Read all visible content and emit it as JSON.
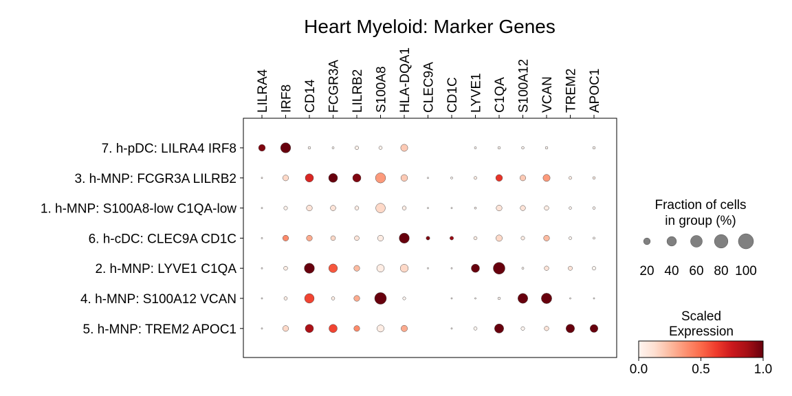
{
  "chart_data": {
    "type": "dotplot",
    "title": "Heart Myeloid: Marker Genes",
    "genes": [
      "LILRA4",
      "IRF8",
      "CD14",
      "FCGR3A",
      "LILRB2",
      "S100A8",
      "HLA-DQA1",
      "CLEC9A",
      "CD1C",
      "LYVE1",
      "C1QA",
      "S100A12",
      "VCAN",
      "TREM2",
      "APOC1"
    ],
    "groups": [
      "7. h-pDC: LILRA4 IRF8",
      "3. h-MNP: FCGR3A LILRB2",
      "1. h-MNP: S100A8-low C1QA-low",
      "6. h-cDC: CLEC9A CD1C",
      "2. h-MNP: LYVE1 C1QA",
      "4. h-MNP: S100A12 VCAN",
      "5. h-MNP: TREM2 APOC1"
    ],
    "fraction": [
      [
        20,
        45,
        3,
        2,
        6,
        5,
        22,
        0,
        0,
        2,
        3,
        3,
        3,
        0,
        3
      ],
      [
        1,
        15,
        30,
        35,
        30,
        45,
        20,
        1,
        2,
        4,
        20,
        15,
        22,
        4,
        3
      ],
      [
        1,
        6,
        15,
        13,
        7,
        40,
        7,
        1,
        1,
        2,
        15,
        12,
        9,
        3,
        3
      ],
      [
        1,
        15,
        15,
        10,
        10,
        15,
        45,
        6,
        6,
        5,
        18,
        6,
        15,
        4,
        2
      ],
      [
        1,
        7,
        45,
        33,
        15,
        25,
        28,
        1,
        1,
        30,
        60,
        2,
        9,
        8,
        6
      ],
      [
        1,
        5,
        40,
        5,
        15,
        60,
        4,
        0,
        1,
        1,
        3,
        43,
        48,
        1,
        1
      ],
      [
        1,
        15,
        30,
        30,
        15,
        22,
        18,
        0,
        1,
        5,
        37,
        6,
        9,
        32,
        27
      ]
    ],
    "expression": [
      [
        0.95,
        1.0,
        0.0,
        0.0,
        0.02,
        0.02,
        0.2,
        0.0,
        0.0,
        0.0,
        0.0,
        0.0,
        0.0,
        0.0,
        0.0
      ],
      [
        0.05,
        0.15,
        0.7,
        1.0,
        0.95,
        0.35,
        0.2,
        0.0,
        0.0,
        0.05,
        0.65,
        0.2,
        0.35,
        0.05,
        0.05
      ],
      [
        0.0,
        0.02,
        0.1,
        0.1,
        0.05,
        0.15,
        0.05,
        0.0,
        0.0,
        0.0,
        0.1,
        0.1,
        0.05,
        0.0,
        0.0
      ],
      [
        0.0,
        0.4,
        0.3,
        0.15,
        0.1,
        0.05,
        1.0,
        0.95,
        0.9,
        0.05,
        0.15,
        0.05,
        0.25,
        0.0,
        0.0
      ],
      [
        0.0,
        0.05,
        1.0,
        0.55,
        0.25,
        0.05,
        0.15,
        0.0,
        0.0,
        1.0,
        1.0,
        0.0,
        0.1,
        0.1,
        0.0
      ],
      [
        0.0,
        0.05,
        0.6,
        0.05,
        0.3,
        1.0,
        0.0,
        0.0,
        0.0,
        0.0,
        0.0,
        1.0,
        1.0,
        0.0,
        0.0
      ],
      [
        0.0,
        0.15,
        0.85,
        0.6,
        0.4,
        0.05,
        0.3,
        0.0,
        0.0,
        0.0,
        1.0,
        0.0,
        0.1,
        1.0,
        1.0
      ]
    ],
    "size_legend": {
      "title_line1": "Fraction of cells",
      "title_line2": "in group (%)",
      "values": [
        20,
        40,
        60,
        80,
        100
      ]
    },
    "color_legend": {
      "title_line1": "Scaled",
      "title_line2": "Expression",
      "ticks": [
        "0.0",
        "0.5",
        "1.0"
      ],
      "range": [
        0,
        1
      ],
      "colormap": "Reds"
    },
    "colors": {
      "dot_edge": "#555555",
      "axis": "#000000",
      "reds_low": "#fff5f0",
      "reds_mid": "#f44f39",
      "reds_high": "#67000d"
    }
  }
}
